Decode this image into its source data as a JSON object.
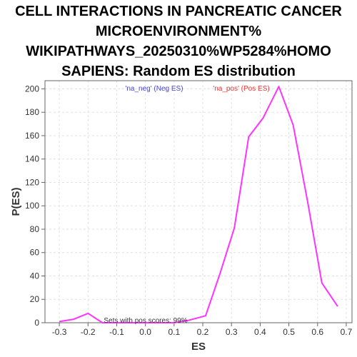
{
  "chart_data": {
    "type": "line",
    "title_lines": [
      "CELL INTERACTIONS IN PANCREATIC CANCER",
      "MICROENVIRONMENT%",
      "WIKIPATHWAYS_20250310%WP5284%HOMO",
      "SAPIENS: Random ES distribution"
    ],
    "xlabel": "ES",
    "ylabel": "P(ES)",
    "xlim": [
      -0.35,
      0.72
    ],
    "ylim": [
      0,
      207
    ],
    "xticks": [
      -0.3,
      -0.2,
      -0.1,
      0.0,
      0.1,
      0.2,
      0.3,
      0.4,
      0.5,
      0.6,
      0.7
    ],
    "xtick_labels": [
      "-0.3",
      "-0.2",
      "-0.1",
      "0.0",
      "0.1",
      "0.2",
      "0.3",
      "0.4",
      "0.5",
      "0.6",
      "0.7"
    ],
    "yticks": [
      0,
      20,
      40,
      60,
      80,
      100,
      120,
      140,
      160,
      180,
      200
    ],
    "ytick_labels": [
      "0",
      "20",
      "40",
      "60",
      "80",
      "100",
      "120",
      "140",
      "160",
      "180",
      "200"
    ],
    "grid": true,
    "legend": [
      {
        "text": "'na_neg' (Neg ES)",
        "color": "#4444dd"
      },
      {
        "text": "'na_pos' (Pos ES)",
        "color": "#ee3333"
      }
    ],
    "annotation": "Sets with pos scores: 99%",
    "series": [
      {
        "color": "#ff33ff",
        "x": [
          -0.3,
          -0.25,
          -0.2,
          -0.15,
          -0.1,
          -0.05,
          0.0,
          0.05,
          0.1,
          0.15,
          0.21,
          0.26,
          0.31,
          0.36,
          0.41,
          0.465,
          0.515,
          0.565,
          0.615,
          0.67
        ],
        "y": [
          1,
          3,
          8,
          0,
          0,
          0,
          0,
          0,
          0,
          2,
          6,
          42,
          81,
          159,
          175,
          202,
          169,
          104,
          34,
          14
        ]
      }
    ]
  }
}
